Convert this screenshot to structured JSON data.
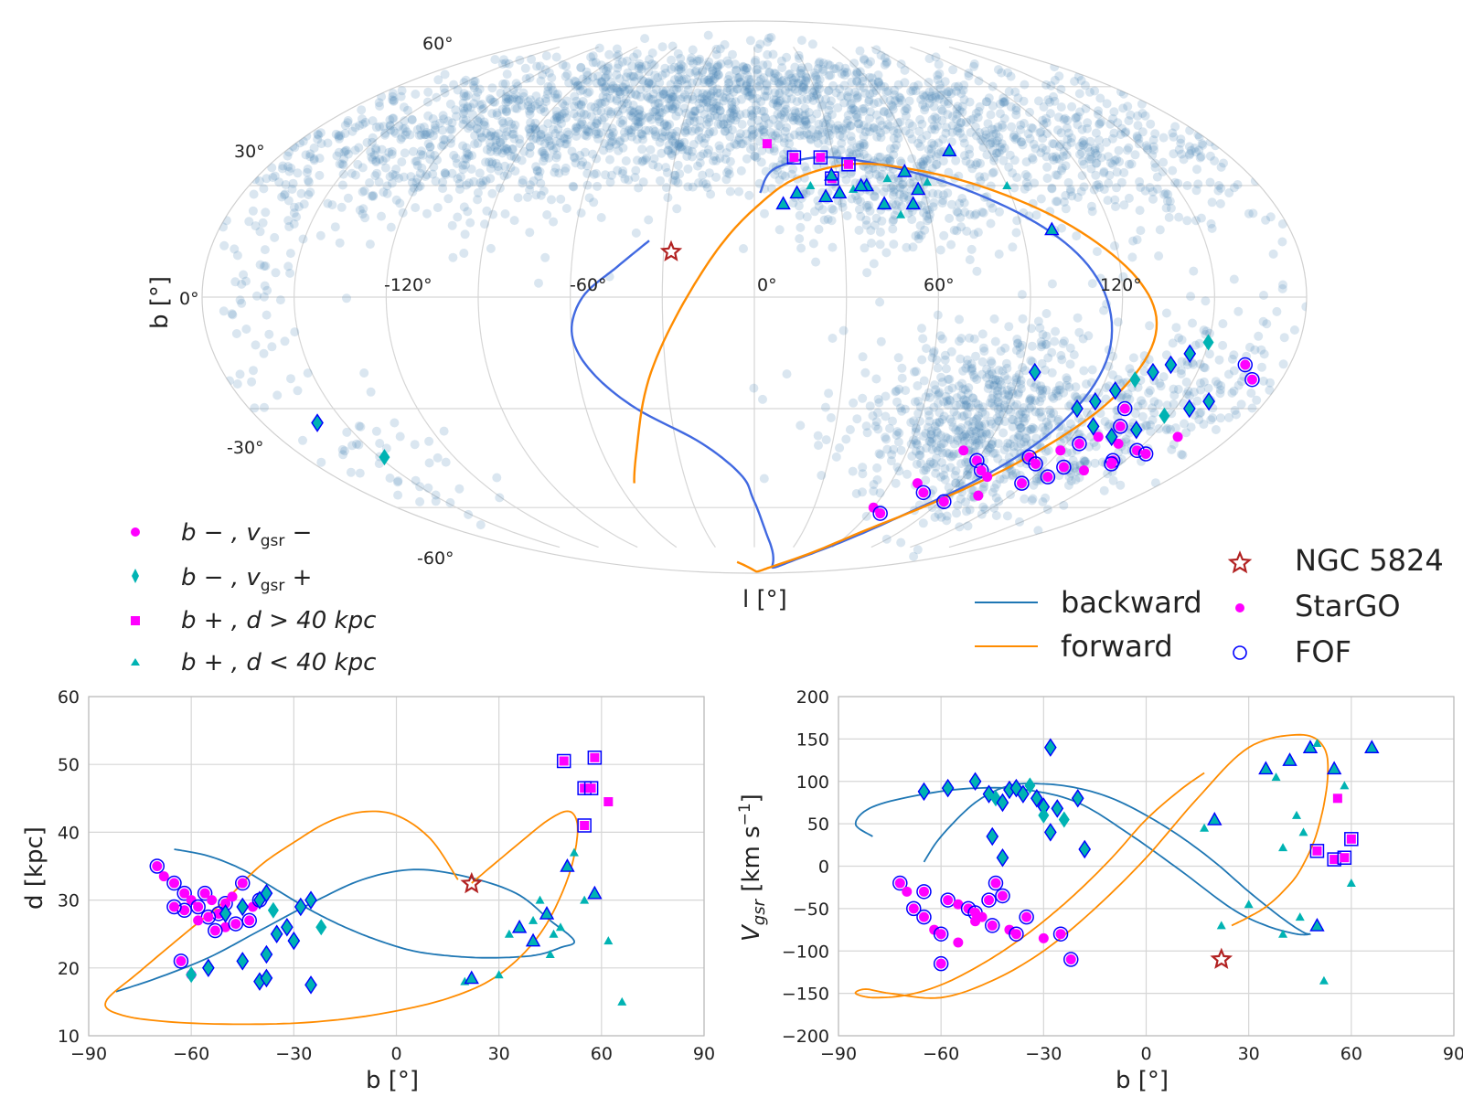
{
  "colors": {
    "background": "#ffffff",
    "grid": "#d6d6d6",
    "stars": "#4682b4",
    "backward": "#4169e1",
    "forward": "#ff8c00",
    "backward_bottom": "#1f77b4",
    "stargo": "#ff00ff",
    "teal": "#00b3b3",
    "fof": "#0000ff",
    "ngc": "#b22222"
  },
  "chart_data": [
    {
      "type": "scatter",
      "projection": "mollweide",
      "xlabel": "l [°]",
      "ylabel": "b [°]",
      "lon_ticks": [
        "-120°",
        "-60°",
        "0°",
        "60°",
        "120°"
      ],
      "lat_ticks": [
        "60°",
        "30°",
        "0°",
        "-30°",
        "-60°"
      ],
      "legend": {
        "groups": [
          {
            "name": "b−, v_gsr−",
            "label_main": "b − , v",
            "label_sub": "gsr",
            "label_tail": " −",
            "marker": "circle",
            "color": "#ff00ff"
          },
          {
            "name": "b−, v_gsr+",
            "label_main": "b − , v",
            "label_sub": "gsr",
            "label_tail": " +",
            "marker": "diamond",
            "color": "#00b3b3"
          },
          {
            "name": "b+, d>40 kpc",
            "label_main": "b + , d > 40 kpc",
            "marker": "square",
            "color": "#ff00ff"
          },
          {
            "name": "b+, d<40 kpc",
            "label_main": "b + , d < 40 kpc",
            "marker": "triangle",
            "color": "#00b3b3"
          }
        ],
        "lines": [
          {
            "name": "backward",
            "label": "backward",
            "color": "#1f77b4"
          },
          {
            "name": "forward",
            "label": "forward",
            "color": "#ff8c00"
          }
        ],
        "markers": [
          {
            "name": "NGC 5824",
            "label": "NGC 5824"
          },
          {
            "name": "StarGO",
            "label": "StarGO"
          },
          {
            "name": "FOF",
            "label": "FOF"
          }
        ]
      },
      "ngc5824": {
        "l": -27.5,
        "b": 12.0
      },
      "star_field_clusters": [
        {
          "l": -40,
          "b": 50,
          "sl": 60,
          "sb": 12,
          "n": 900
        },
        {
          "l": 60,
          "b": 45,
          "sl": 55,
          "sb": 10,
          "n": 520
        },
        {
          "l": -120,
          "b": 40,
          "sl": 35,
          "sb": 12,
          "n": 380
        },
        {
          "l": 140,
          "b": 35,
          "sl": 25,
          "sb": 12,
          "n": 220
        },
        {
          "l": 50,
          "b": 25,
          "sl": 20,
          "sb": 7,
          "n": 180
        },
        {
          "l": 80,
          "b": -30,
          "sl": 25,
          "sb": 12,
          "n": 520
        },
        {
          "l": 110,
          "b": -45,
          "sl": 25,
          "sb": 10,
          "n": 260
        },
        {
          "l": 150,
          "b": -25,
          "sl": 18,
          "sb": 10,
          "n": 160
        },
        {
          "l": -165,
          "b": 5,
          "sl": 10,
          "sb": 18,
          "n": 60
        },
        {
          "l": -150,
          "b": -45,
          "sl": 15,
          "sb": 10,
          "n": 50
        },
        {
          "l": 0,
          "b": 60,
          "sl": 80,
          "sb": 6,
          "n": 260
        }
      ],
      "series": [
        {
          "name": "backward",
          "l": [
            -35,
            -45,
            -56,
            -60,
            -55,
            -42,
            -20,
            -5,
            0,
            10,
            28,
            45,
            63,
            80,
            98,
            112,
            118,
            112,
            95,
            65,
            30,
            8,
            2
          ],
          "b": [
            15,
            8,
            0,
            -10,
            -20,
            -30,
            -40,
            -50,
            -58,
            -72,
            -85,
            -80,
            -72,
            -62,
            -50,
            -35,
            -15,
            5,
            20,
            32,
            38,
            35,
            28
          ]
        },
        {
          "name": "forward",
          "l": [
            -53,
            -45,
            -35,
            -22,
            -10,
            2,
            15,
            35,
            55,
            80,
            105,
            125,
            132,
            125,
            108,
            88,
            68,
            48,
            25,
            5,
            -20
          ],
          "b": [
            -52,
            -40,
            -20,
            0,
            15,
            25,
            32,
            36,
            35,
            30,
            20,
            5,
            -10,
            -28,
            -45,
            -58,
            -68,
            -78,
            -85,
            -88,
            -82
          ]
        },
        {
          "name": "b- v- (StarGO/FOF)",
          "l": [
            82,
            90,
            95,
            100,
            110,
            115,
            120,
            125,
            128,
            130,
            135,
            132,
            140,
            145,
            150,
            160,
            165,
            170,
            72,
            78,
            92,
            105,
            118,
            126,
            138,
            146,
            155,
            60,
            66
          ],
          "b": [
            -42,
            -45,
            -48,
            -50,
            -44,
            -46,
            -42,
            -40,
            -47,
            -38,
            -35,
            -30,
            -40,
            -45,
            -42,
            -38,
            -18,
            -22,
            -52,
            -55,
            -58,
            -56,
            -52,
            -50,
            -48,
            -46,
            -43,
            -60,
            -62
          ]
        },
        {
          "name": "b- v+ diamonds",
          "l": [
            115,
            120,
            125,
            130,
            135,
            140,
            145,
            150,
            125,
            135,
            142,
            148,
            155,
            160,
            95,
            -148,
            -160
          ],
          "b": [
            -30,
            -28,
            -25,
            -22,
            -20,
            -18,
            -15,
            -12,
            -35,
            -38,
            -36,
            -32,
            -30,
            -28,
            -20,
            -44,
            -34
          ]
        },
        {
          "name": "b+ d>40 squares",
          "l": [
            15,
            25,
            28,
            35,
            5
          ],
          "b": [
            38,
            38,
            32,
            36,
            42
          ]
        },
        {
          "name": "b+ d<40 triangles",
          "l": [
            10,
            15,
            20,
            25,
            30,
            35,
            40,
            45,
            50,
            55,
            58,
            62,
            28,
            38,
            48,
            55,
            75,
            90,
            100
          ],
          "b": [
            25,
            28,
            30,
            27,
            28,
            29,
            30,
            25,
            22,
            25,
            29,
            31,
            33,
            30,
            32,
            34,
            40,
            30,
            18
          ]
        }
      ]
    },
    {
      "type": "scatter",
      "xlabel": "b [°]",
      "ylabel": "d [kpc]",
      "xlim": [
        -90,
        90
      ],
      "ylim": [
        10,
        60
      ],
      "xticks": [
        -90,
        -60,
        -30,
        0,
        30,
        60,
        90
      ],
      "xtick_labels": [
        "−90",
        "−60",
        "−30",
        "0",
        "30",
        "60",
        "90"
      ],
      "yticks": [
        10,
        20,
        30,
        40,
        50,
        60
      ],
      "ngc5824": {
        "x": 22,
        "y": 32.4
      },
      "lines": [
        {
          "name": "backward",
          "x": [
            -65,
            -55,
            -45,
            -35,
            -25,
            -15,
            -5,
            5,
            15,
            25,
            35,
            42,
            48,
            52,
            45,
            35,
            20,
            5,
            -10,
            -25,
            -40,
            -55,
            -70,
            -82
          ],
          "y": [
            37.5,
            36.5,
            34.5,
            31.5,
            28.5,
            26,
            24,
            22.5,
            21.8,
            21.5,
            21.6,
            22,
            23,
            24,
            27,
            31,
            33.5,
            34.5,
            33,
            29.5,
            25.5,
            21.5,
            18.5,
            16.5
          ]
        },
        {
          "name": "forward",
          "x": [
            18,
            10,
            0,
            -10,
            -20,
            -30,
            -40,
            -50,
            -62,
            -75,
            -85,
            -80,
            -65,
            -45,
            -25,
            -5,
            15,
            30,
            42,
            50,
            53,
            51,
            45,
            35,
            22
          ],
          "y": [
            33,
            39,
            42.5,
            43,
            41.5,
            38.5,
            35,
            30,
            25,
            19.5,
            15,
            13,
            12,
            11.7,
            12,
            13.2,
            15.5,
            19,
            25,
            33,
            40,
            43,
            42,
            38,
            32.5
          ]
        }
      ],
      "series": [
        {
          "name": "StarGO circles",
          "x": [
            -70,
            -68,
            -65,
            -62,
            -60,
            -58,
            -56,
            -54,
            -52,
            -50,
            -48,
            -45,
            -43,
            -42,
            -40,
            -55,
            -58,
            -62,
            -65,
            -50,
            -47,
            -53,
            -60,
            -63
          ],
          "y": [
            35,
            33.5,
            32.5,
            31,
            30,
            29,
            31,
            30,
            28,
            29.5,
            30.5,
            32.5,
            27,
            29,
            30,
            27.5,
            27,
            28.5,
            29,
            26,
            26.5,
            25.5,
            19,
            21
          ]
        },
        {
          "name": "diamonds",
          "x": [
            -50,
            -45,
            -40,
            -38,
            -36,
            -32,
            -30,
            -28,
            -25,
            -22,
            -35,
            -38,
            -45,
            -55,
            -60,
            -40,
            -38,
            -25
          ],
          "y": [
            28,
            29,
            30,
            31,
            28.5,
            26,
            24,
            29,
            30,
            26,
            25,
            22,
            21,
            20,
            19,
            18,
            18.5,
            17.5
          ]
        },
        {
          "name": "squares",
          "x": [
            49,
            55,
            57,
            58,
            62,
            55
          ],
          "y": [
            50.5,
            46.5,
            46.5,
            51,
            44.5,
            41
          ]
        },
        {
          "name": "triangles",
          "x": [
            20,
            22,
            30,
            33,
            36,
            40,
            42,
            44,
            46,
            48,
            50,
            52,
            55,
            58,
            62,
            66,
            40,
            45
          ],
          "y": [
            18,
            18.5,
            19,
            25,
            26,
            27,
            30,
            28,
            25,
            26,
            35,
            37,
            30,
            31,
            24,
            15,
            24,
            22
          ]
        }
      ]
    },
    {
      "type": "scatter",
      "xlabel": "b [°]",
      "ylabel": "V_gsr [km s^-1]",
      "xlim": [
        -90,
        90
      ],
      "ylim": [
        -200,
        200
      ],
      "xticks": [
        -90,
        -60,
        -30,
        0,
        30,
        60,
        90
      ],
      "xtick_labels": [
        "−90",
        "−60",
        "−30",
        "0",
        "30",
        "60",
        "90"
      ],
      "yticks": [
        -200,
        -150,
        -100,
        -50,
        0,
        50,
        100,
        150,
        200
      ],
      "ytick_labels": [
        "−200",
        "−150",
        "−100",
        "−50",
        "0",
        "50",
        "100",
        "150",
        "200"
      ],
      "ngc5824": {
        "x": 22,
        "y": -110
      },
      "lines": [
        {
          "name": "backward",
          "x": [
            -65,
            -60,
            -50,
            -40,
            -30,
            -20,
            -10,
            0,
            10,
            20,
            30,
            40,
            46,
            48,
            44,
            35,
            25,
            10,
            -5,
            -20,
            -35,
            -50,
            -65,
            -80,
            -85,
            -80
          ],
          "y": [
            5,
            35,
            75,
            95,
            97,
            92,
            80,
            60,
            35,
            5,
            -30,
            -62,
            -78,
            -80,
            -80,
            -70,
            -50,
            -5,
            38,
            75,
            90,
            92,
            85,
            70,
            50,
            35
          ]
        },
        {
          "name": "forward",
          "x": [
            17,
            10,
            0,
            -10,
            -20,
            -30,
            -40,
            -50,
            -60,
            -70,
            -80,
            -85,
            -82,
            -75,
            -60,
            -45,
            -30,
            -15,
            0,
            15,
            30,
            45,
            52,
            53,
            50,
            45,
            40,
            35,
            30,
            25
          ],
          "y": [
            110,
            90,
            55,
            10,
            -30,
            -65,
            -95,
            -120,
            -140,
            -152,
            -155,
            -150,
            -145,
            -150,
            -155,
            -135,
            -100,
            -50,
            10,
            80,
            140,
            155,
            140,
            100,
            40,
            -5,
            -30,
            -48,
            -60,
            -70
          ]
        }
      ],
      "series": [
        {
          "name": "StarGO circles",
          "x": [
            -72,
            -70,
            -68,
            -65,
            -62,
            -60,
            -58,
            -55,
            -52,
            -50,
            -48,
            -46,
            -44,
            -40,
            -38,
            -35,
            -30,
            -25,
            -22,
            -55,
            -60,
            -65,
            -50,
            -45,
            -42
          ],
          "y": [
            -20,
            -30,
            -50,
            -60,
            -75,
            -80,
            -40,
            -45,
            -50,
            -55,
            -60,
            -40,
            -20,
            -75,
            -80,
            -60,
            -85,
            -80,
            -110,
            -90,
            -115,
            -30,
            -65,
            -70,
            -35
          ]
        },
        {
          "name": "diamonds",
          "x": [
            -65,
            -58,
            -50,
            -46,
            -44,
            -42,
            -40,
            -38,
            -36,
            -34,
            -32,
            -30,
            -28,
            -26,
            -24,
            -20,
            -18,
            -45,
            -42,
            -30,
            -28
          ],
          "y": [
            88,
            92,
            100,
            85,
            80,
            75,
            90,
            92,
            85,
            95,
            80,
            70,
            140,
            68,
            55,
            80,
            20,
            35,
            10,
            60,
            40
          ]
        },
        {
          "name": "squares",
          "x": [
            50,
            55,
            58,
            60,
            56
          ],
          "y": [
            18,
            8,
            10,
            32,
            80
          ]
        },
        {
          "name": "triangles",
          "x": [
            17,
            20,
            22,
            30,
            35,
            38,
            40,
            42,
            44,
            46,
            48,
            50,
            52,
            55,
            58,
            60,
            66,
            40,
            45,
            50
          ],
          "y": [
            45,
            55,
            -70,
            -45,
            115,
            105,
            22,
            125,
            60,
            40,
            140,
            145,
            -135,
            115,
            95,
            -20,
            140,
            -80,
            -60,
            -70
          ]
        }
      ]
    }
  ]
}
